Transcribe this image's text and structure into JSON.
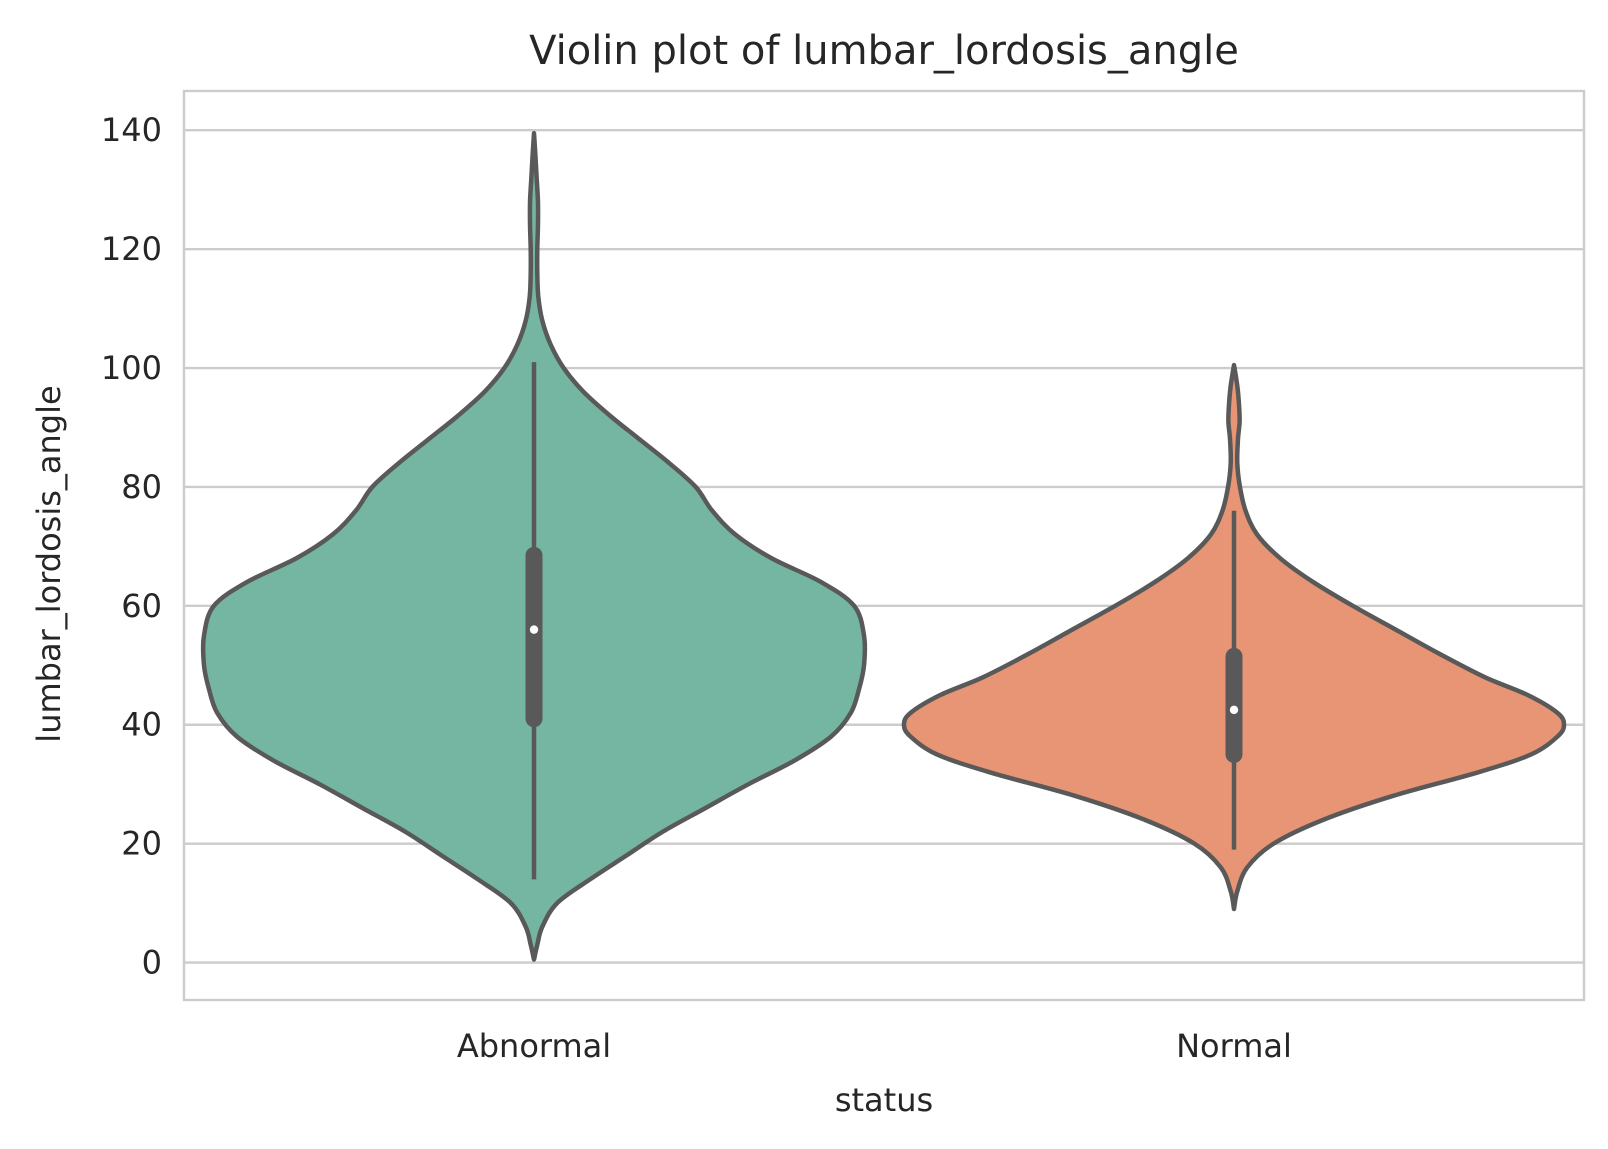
{
  "chart_data": {
    "type": "violin",
    "title": "Violin plot of lumbar_lordosis_angle",
    "xlabel": "status",
    "ylabel": "lumbar_lordosis_angle",
    "ylim": [
      -6.3,
      146.6
    ],
    "yticks": [
      0,
      20,
      40,
      60,
      80,
      100,
      120,
      140
    ],
    "grid": true,
    "categories": [
      "Abnormal",
      "Normal"
    ],
    "colors": {
      "Abnormal": "#75b6a2",
      "Normal": "#e89575",
      "outline": "#595959",
      "grid": "#cccccc",
      "text": "#262626"
    },
    "series": [
      {
        "category": "Abnormal",
        "min": 14.0,
        "q1": 41.0,
        "median": 56.0,
        "q3": 68.5,
        "max": 101.0,
        "range": [
          0.5,
          139.5
        ],
        "density": [
          [
            0.5,
            0.0
          ],
          [
            3,
            0.01
          ],
          [
            6,
            0.025
          ],
          [
            10,
            0.07
          ],
          [
            14,
            0.17
          ],
          [
            18,
            0.28
          ],
          [
            22,
            0.39
          ],
          [
            26,
            0.52
          ],
          [
            30,
            0.65
          ],
          [
            34,
            0.79
          ],
          [
            38,
            0.9
          ],
          [
            42,
            0.96
          ],
          [
            46,
            0.985
          ],
          [
            50,
            1.0
          ],
          [
            55,
            1.0
          ],
          [
            60,
            0.97
          ],
          [
            64,
            0.87
          ],
          [
            68,
            0.72
          ],
          [
            72,
            0.61
          ],
          [
            76,
            0.54
          ],
          [
            80,
            0.49
          ],
          [
            84,
            0.41
          ],
          [
            88,
            0.32
          ],
          [
            92,
            0.23
          ],
          [
            96,
            0.15
          ],
          [
            100,
            0.09
          ],
          [
            104,
            0.05
          ],
          [
            108,
            0.025
          ],
          [
            112,
            0.013
          ],
          [
            116,
            0.01
          ],
          [
            120,
            0.01
          ],
          [
            124,
            0.012
          ],
          [
            128,
            0.012
          ],
          [
            132,
            0.008
          ],
          [
            136,
            0.004
          ],
          [
            139.5,
            0.0
          ]
        ]
      },
      {
        "category": "Normal",
        "min": 19.0,
        "q1": 35.0,
        "median": 42.5,
        "q3": 51.5,
        "max": 76.0,
        "range": [
          9.0,
          100.5
        ],
        "density": [
          [
            9.0,
            0.0
          ],
          [
            12,
            0.01
          ],
          [
            16,
            0.04
          ],
          [
            20,
            0.12
          ],
          [
            24,
            0.27
          ],
          [
            28,
            0.48
          ],
          [
            32,
            0.74
          ],
          [
            35,
            0.9
          ],
          [
            38,
            0.98
          ],
          [
            40,
            1.0
          ],
          [
            42,
            0.98
          ],
          [
            45,
            0.89
          ],
          [
            48,
            0.76
          ],
          [
            52,
            0.62
          ],
          [
            56,
            0.49
          ],
          [
            60,
            0.36
          ],
          [
            64,
            0.24
          ],
          [
            68,
            0.14
          ],
          [
            72,
            0.07
          ],
          [
            76,
            0.035
          ],
          [
            80,
            0.018
          ],
          [
            84,
            0.01
          ],
          [
            88,
            0.012
          ],
          [
            91,
            0.017
          ],
          [
            94,
            0.015
          ],
          [
            97,
            0.01
          ],
          [
            100.5,
            0.0
          ]
        ]
      }
    ]
  }
}
